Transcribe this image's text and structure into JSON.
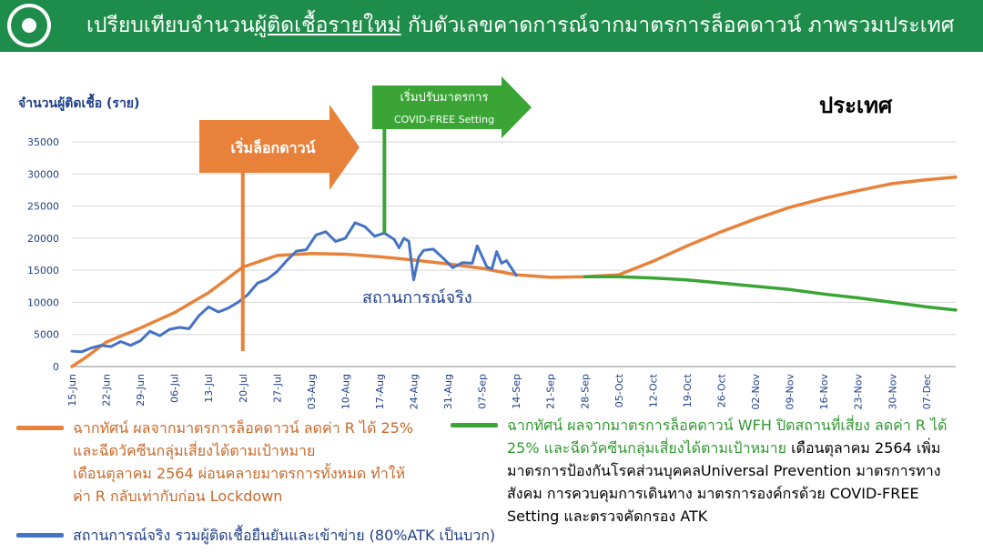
{
  "header": {
    "title_before": "เปรียบเทียบจำนวน",
    "title_underlined": "ผู้ติดเชื้อรายใหม่",
    "title_after": " กับตัวเลขคาดการณ์จากมาตรการล็อคดาวน์ ภาพรวมประเทศ",
    "logo_icon": "ministry-of-public-health-logo"
  },
  "region_label": "ประเทศ",
  "chart_data": {
    "type": "line",
    "ylabel": "จำนวนผู้ติดเชื้อ (ราย)",
    "ylim": [
      0,
      35000
    ],
    "yticks": [
      0,
      5000,
      10000,
      15000,
      20000,
      25000,
      30000,
      35000
    ],
    "x_start": "2021-06-15",
    "x_end": "2021-12-13",
    "xtick_labels": [
      "15-Jun",
      "22-Jun",
      "29-Jun",
      "06-Jul",
      "13-Jul",
      "20-Jul",
      "27-Jul",
      "03-Aug",
      "10-Aug",
      "17-Aug",
      "24-Aug",
      "31-Aug",
      "07-Sep",
      "14-Sep",
      "21-Sep",
      "28-Sep",
      "05-Oct",
      "12-Oct",
      "19-Oct",
      "26-Oct",
      "02-Nov",
      "09-Nov",
      "16-Nov",
      "23-Nov",
      "30-Nov",
      "07-Dec"
    ],
    "grid": true,
    "colors": {
      "orange": "#e8823a",
      "blue": "#4472c4",
      "green": "#3aa535"
    },
    "series": [
      {
        "name": "สถานการณ์จริง",
        "color": "#4472c4",
        "points": [
          [
            "2021-06-15",
            2400
          ],
          [
            "2021-06-17",
            2300
          ],
          [
            "2021-06-19",
            2900
          ],
          [
            "2021-06-21",
            3300
          ],
          [
            "2021-06-23",
            3100
          ],
          [
            "2021-06-25",
            3900
          ],
          [
            "2021-06-27",
            3300
          ],
          [
            "2021-06-29",
            4000
          ],
          [
            "2021-07-01",
            5500
          ],
          [
            "2021-07-03",
            4800
          ],
          [
            "2021-07-05",
            5800
          ],
          [
            "2021-07-07",
            6100
          ],
          [
            "2021-07-09",
            5900
          ],
          [
            "2021-07-11",
            7900
          ],
          [
            "2021-07-13",
            9300
          ],
          [
            "2021-07-15",
            8500
          ],
          [
            "2021-07-17",
            9100
          ],
          [
            "2021-07-19",
            10000
          ],
          [
            "2021-07-21",
            11200
          ],
          [
            "2021-07-23",
            13000
          ],
          [
            "2021-07-25",
            13600
          ],
          [
            "2021-07-27",
            14800
          ],
          [
            "2021-07-29",
            16500
          ],
          [
            "2021-07-31",
            18000
          ],
          [
            "2021-08-02",
            18200
          ],
          [
            "2021-08-04",
            20500
          ],
          [
            "2021-08-06",
            21000
          ],
          [
            "2021-08-08",
            19500
          ],
          [
            "2021-08-10",
            20000
          ],
          [
            "2021-08-12",
            22400
          ],
          [
            "2021-08-14",
            21800
          ],
          [
            "2021-08-16",
            20300
          ],
          [
            "2021-08-18",
            20800
          ],
          [
            "2021-08-20",
            19800
          ],
          [
            "2021-08-21",
            18500
          ],
          [
            "2021-08-22",
            20000
          ],
          [
            "2021-08-23",
            19500
          ],
          [
            "2021-08-24",
            13500
          ],
          [
            "2021-08-25",
            17000
          ],
          [
            "2021-08-26",
            18100
          ],
          [
            "2021-08-28",
            18300
          ],
          [
            "2021-08-30",
            16900
          ],
          [
            "2021-09-01",
            15400
          ],
          [
            "2021-09-03",
            16200
          ],
          [
            "2021-09-05",
            16100
          ],
          [
            "2021-09-06",
            18800
          ],
          [
            "2021-09-08",
            15500
          ],
          [
            "2021-09-09",
            15200
          ],
          [
            "2021-09-10",
            17900
          ],
          [
            "2021-09-11",
            16100
          ],
          [
            "2021-09-12",
            16500
          ],
          [
            "2021-09-14",
            14200
          ]
        ]
      },
      {
        "name": "ฉากทัศน์ ผลจากมาตรการล็อคดาวน์ ลดค่า R ได้ 25%",
        "color": "#e8823a",
        "points": [
          [
            "2021-06-15",
            0
          ],
          [
            "2021-06-18",
            1500
          ],
          [
            "2021-06-22",
            3800
          ],
          [
            "2021-06-29",
            6000
          ],
          [
            "2021-07-06",
            8400
          ],
          [
            "2021-07-13",
            11500
          ],
          [
            "2021-07-20",
            15500
          ],
          [
            "2021-07-27",
            17300
          ],
          [
            "2021-08-03",
            17600
          ],
          [
            "2021-08-10",
            17500
          ],
          [
            "2021-08-17",
            17100
          ],
          [
            "2021-08-24",
            16600
          ],
          [
            "2021-08-31",
            16000
          ],
          [
            "2021-09-07",
            15300
          ],
          [
            "2021-09-14",
            14300
          ],
          [
            "2021-09-21",
            13900
          ],
          [
            "2021-09-28",
            14000
          ],
          [
            "2021-10-05",
            14300
          ],
          [
            "2021-10-12",
            16400
          ],
          [
            "2021-10-19",
            18800
          ],
          [
            "2021-10-26",
            21000
          ],
          [
            "2021-11-02",
            23000
          ],
          [
            "2021-11-09",
            24800
          ],
          [
            "2021-11-16",
            26200
          ],
          [
            "2021-11-23",
            27400
          ],
          [
            "2021-11-30",
            28500
          ],
          [
            "2021-12-07",
            29100
          ],
          [
            "2021-12-13",
            29500
          ]
        ]
      },
      {
        "name": "ฉากทัศน์ ผลจากมาตรการล็อคดาวน์ WFH ปิดสถานที่เสี่ยง ลดค่า R ได้ 25%",
        "color": "#3aa535",
        "points": [
          [
            "2021-09-28",
            14000
          ],
          [
            "2021-10-05",
            14000
          ],
          [
            "2021-10-12",
            13800
          ],
          [
            "2021-10-19",
            13500
          ],
          [
            "2021-10-26",
            13000
          ],
          [
            "2021-11-02",
            12500
          ],
          [
            "2021-11-09",
            12000
          ],
          [
            "2021-11-16",
            11300
          ],
          [
            "2021-11-23",
            10700
          ],
          [
            "2021-11-30",
            10000
          ],
          [
            "2021-12-07",
            9300
          ],
          [
            "2021-12-13",
            8800
          ]
        ]
      }
    ],
    "annotations": [
      {
        "text": "เริ่มล็อกดาวน์",
        "date": "2021-07-20",
        "color": "#e8823a"
      },
      {
        "text_line1": "เริ่มปรับมาตรการ",
        "text_line2": "COVID-FREE Setting",
        "date": "2021-08-18",
        "color": "#3aa535"
      },
      {
        "text": "สถานการณ์จริง",
        "color": "#1f3f8a"
      }
    ]
  },
  "legend": {
    "orange_lines": [
      "ฉากทัศน์ ผลจากมาตรการล็อคดาวน์ ลดค่า R ได้ 25%",
      "และฉีดวัคซีนกลุ่มเสี่ยงได้ตามเป้าหมาย",
      "เดือนตุลาคม 2564 ผ่อนคลายมาตรการทั้งหมด ทำให้",
      "ค่า R กลับเท่ากับก่อน Lockdown"
    ],
    "blue_line": "สถานการณ์จริง รวมผู้ติดเชื้อยืนยันและเข้าข่าย (80%ATK เป็นบวก)",
    "green_line1": "ฉากทัศน์ ผลจากมาตรการล็อคดาวน์ WFH ปิดสถานที่เสี่ยง ลดค่า R ได้",
    "green_line2_green": "25% และฉีดวัคซีนกลุ่มเสี่ยงได้ตามเป้าหมาย",
    "green_line2_black": " เดือนตุลาคม 2564 เพิ่ม",
    "green_line3": "มาตรการป้องกันโรคส่วนบุคคลUniversal Prevention มาตรการทาง",
    "green_line4": "สังคม การควบคุมการเดินทาง มาตรการองค์กรด้วย COVID-FREE",
    "green_line5": "Setting และตรวจคัดกรอง ATK"
  }
}
